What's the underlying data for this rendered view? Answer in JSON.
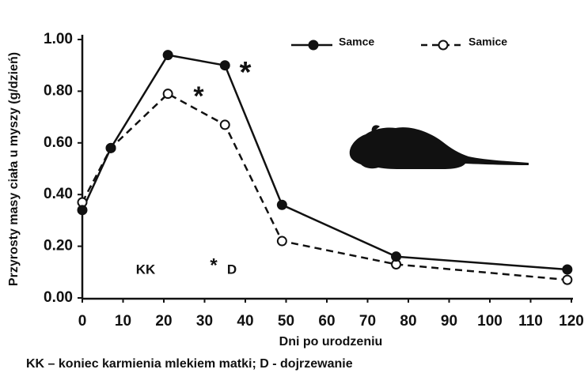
{
  "chart_data": {
    "type": "line",
    "y_label": "Przyrosty masy ciała u myszy (g/dzień)",
    "x_label": "Dni po urodzeniu",
    "caption": "KK – koniec karmienia mlekiem matki; D - dojrzewanie",
    "annotations": [
      "*",
      "*",
      "KK",
      "*",
      "D"
    ],
    "x": [
      0,
      7,
      21,
      35,
      49,
      77,
      119
    ],
    "series": [
      {
        "name": "Samce",
        "color": "#111111",
        "marker": "filled",
        "dashed": false,
        "values": [
          0.34,
          0.58,
          0.94,
          0.9,
          0.36,
          0.16,
          0.11
        ]
      },
      {
        "name": "Samice",
        "color": "#111111",
        "marker": "open",
        "dashed": true,
        "values": [
          0.37,
          0.58,
          0.79,
          0.67,
          0.22,
          0.13,
          0.07
        ]
      }
    ],
    "xlim": [
      0,
      120
    ],
    "xticks": [
      0,
      10,
      20,
      30,
      40,
      50,
      60,
      70,
      80,
      90,
      100,
      110,
      120
    ],
    "ylim": [
      0,
      1
    ],
    "yticks": [
      {
        "value": 0,
        "label": "0.00"
      },
      {
        "value": 0.2,
        "label": "0.20"
      },
      {
        "value": 0.4,
        "label": "0.40"
      },
      {
        "value": 0.6,
        "label": "0.60"
      },
      {
        "value": 0.8,
        "label": "0.80"
      },
      {
        "value": 1,
        "label": "1.00"
      }
    ],
    "grid": false,
    "legend": "top-right"
  }
}
